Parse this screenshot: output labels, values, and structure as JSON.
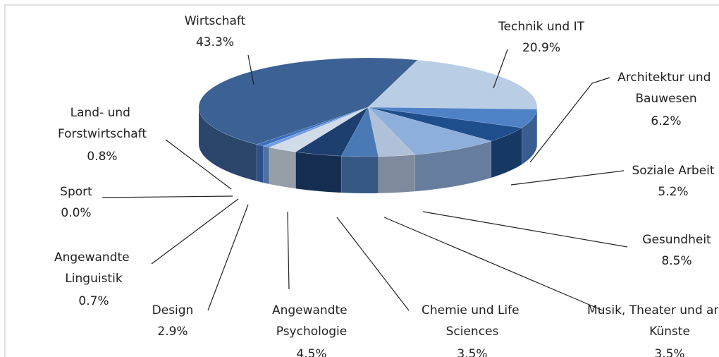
{
  "chart_data": {
    "type": "pie3d",
    "categories": [
      "Technik und IT",
      "Architektur und Bauwesen",
      "Soziale Arbeit",
      "Gesundheit",
      "Musik, Theater und andere Künste",
      "Chemie und Life Sciences",
      "Angewandte Psychologie",
      "Design",
      "Angewandte Linguistik",
      "Sport",
      "Land- und Forstwirtschaft",
      "Wirtschaft"
    ],
    "values": [
      20.9,
      6.2,
      5.2,
      8.5,
      3.5,
      3.5,
      4.5,
      2.9,
      0.7,
      0.0,
      0.8,
      43.3
    ],
    "value_labels": [
      "20.9%",
      "6.2%",
      "5.2%",
      "8.5%",
      "3.5%",
      "3.5%",
      "4.5%",
      "2.9%",
      "0.7%",
      "0.0%",
      "0.8%",
      "43.3%"
    ],
    "colors": [
      "#b9cde5",
      "#4f81c7",
      "#1f4e8c",
      "#8eaedb",
      "#b0c0d8",
      "#4a7ab5",
      "#1c3f70",
      "#d0dcea",
      "#6f9be0",
      "#2b5ea8",
      "#3a6fc0",
      "#3c6194"
    ]
  }
}
